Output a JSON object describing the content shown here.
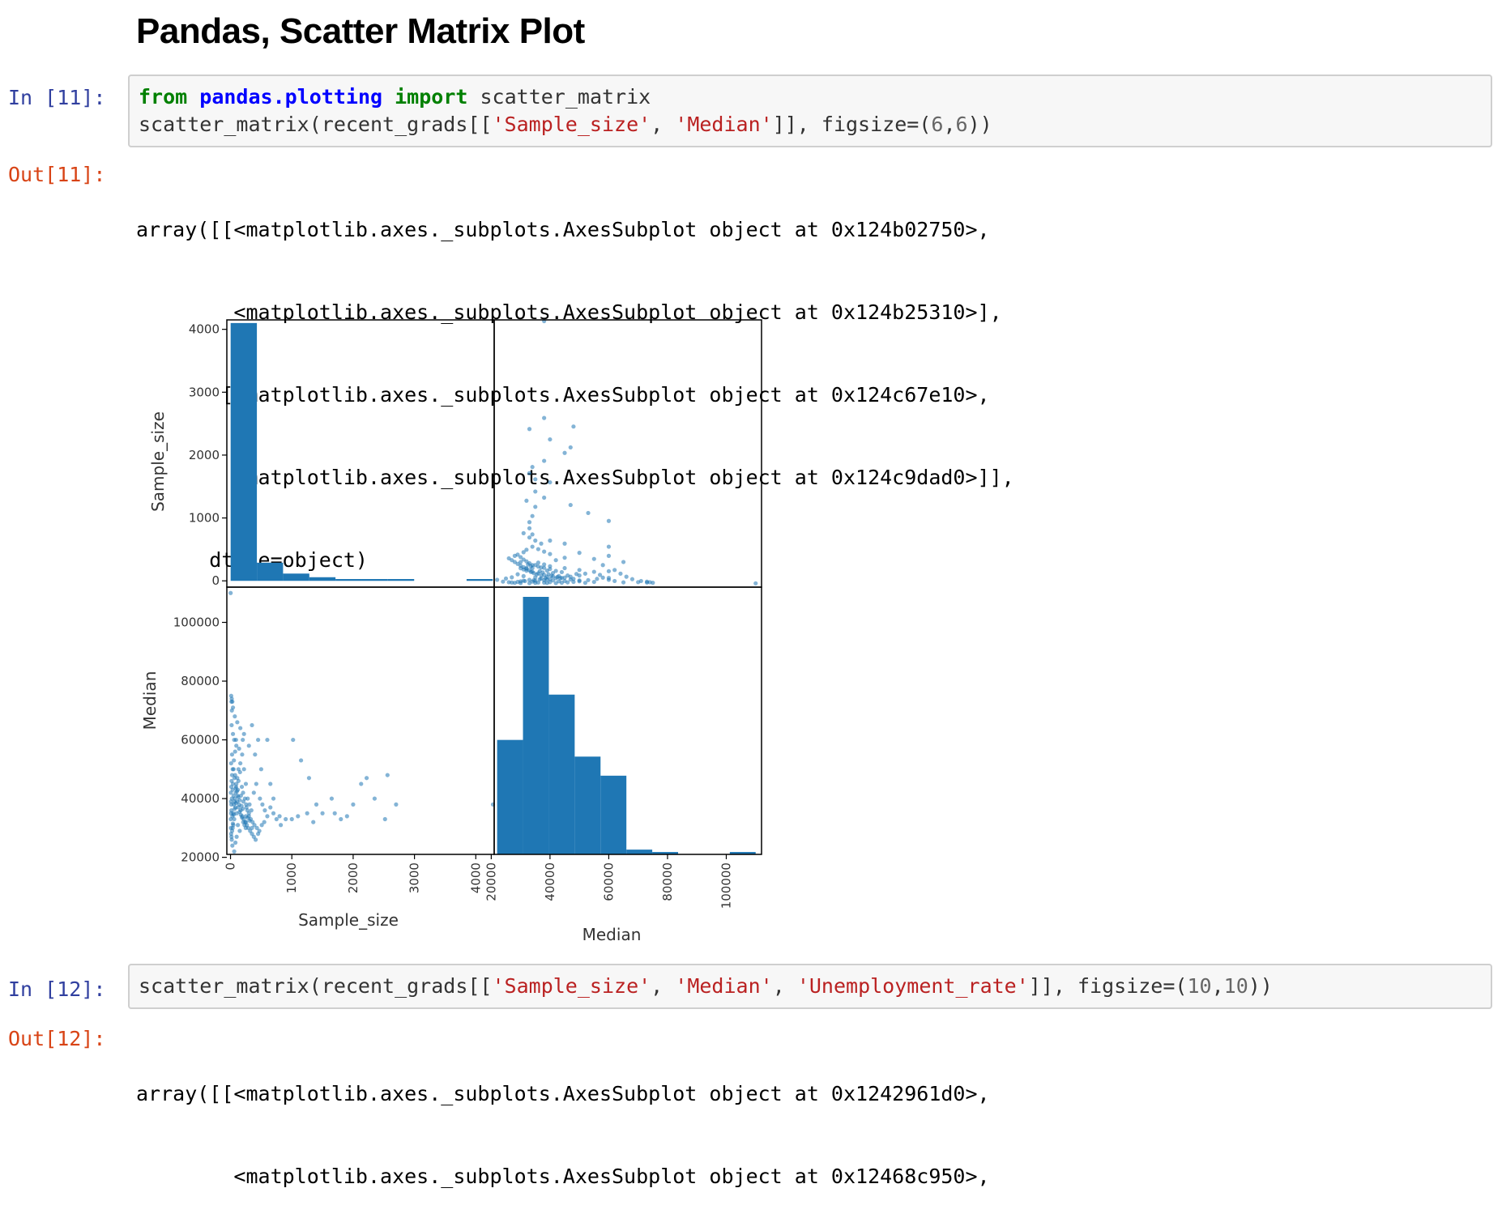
{
  "heading": "Pandas, Scatter Matrix Plot",
  "cells": [
    {
      "in_prompt": "In [11]:",
      "code_lines": [
        [
          {
            "t": "from",
            "c": "kw"
          },
          {
            "t": " "
          },
          {
            "t": "pandas.plotting",
            "c": "mod"
          },
          {
            "t": " "
          },
          {
            "t": "import",
            "c": "kw"
          },
          {
            "t": " scatter_matrix"
          }
        ],
        [
          {
            "t": "scatter_matrix(recent_grads[["
          },
          {
            "t": "'Sample_size'",
            "c": "str"
          },
          {
            "t": ", "
          },
          {
            "t": "'Median'",
            "c": "str"
          },
          {
            "t": "]], figsize=("
          },
          {
            "t": "6",
            "c": "num"
          },
          {
            "t": ","
          },
          {
            "t": "6",
            "c": "num"
          },
          {
            "t": "))"
          }
        ]
      ],
      "out_prompt": "Out[11]:",
      "output_lines": [
        "array([[<matplotlib.axes._subplots.AxesSubplot object at 0x124b02750>,",
        "        <matplotlib.axes._subplots.AxesSubplot object at 0x124b25310>],",
        "       [<matplotlib.axes._subplots.AxesSubplot object at 0x124c67e10>,",
        "        <matplotlib.axes._subplots.AxesSubplot object at 0x124c9dad0>]],",
        "      dtype=object)"
      ]
    },
    {
      "in_prompt": "In [12]:",
      "code_lines": [
        [
          {
            "t": "scatter_matrix(recent_grads[["
          },
          {
            "t": "'Sample_size'",
            "c": "str"
          },
          {
            "t": ", "
          },
          {
            "t": "'Median'",
            "c": "str"
          },
          {
            "t": ", "
          },
          {
            "t": "'Unemployment_rate'",
            "c": "str"
          },
          {
            "t": "]], figsize=("
          },
          {
            "t": "10",
            "c": "num"
          },
          {
            "t": ","
          },
          {
            "t": "10",
            "c": "num"
          },
          {
            "t": "))"
          }
        ]
      ],
      "out_prompt": "Out[12]:",
      "output_lines": [
        "array([[<matplotlib.axes._subplots.AxesSubplot object at 0x1242961d0>,",
        "        <matplotlib.axes._subplots.AxesSubplot object at 0x12468c950>,"
      ]
    }
  ],
  "chart_data": {
    "type": "scatter",
    "variables": [
      "Sample_size",
      "Median"
    ],
    "colors": {
      "mark": "#1f77b4",
      "axis": "#000000"
    },
    "ranges": {
      "Sample_size": [
        -60,
        4300
      ],
      "Median": [
        21000,
        112000
      ]
    },
    "upper_left_ylim": [
      -100,
      4150
    ],
    "upper_left_yticks": [
      0,
      1000,
      2000,
      3000,
      4000
    ],
    "histograms": {
      "Sample_size": {
        "bin_edges": [
          2,
          430,
          857,
          1285,
          1712,
          2140,
          2567,
          2995,
          3422,
          3850,
          4277
        ],
        "counts": [
          142,
          10,
          4,
          2,
          1,
          1,
          1,
          0,
          0,
          1
        ]
      },
      "Median": {
        "bin_edges": [
          22000,
          30800,
          39600,
          48400,
          57200,
          66000,
          74800,
          83600,
          92400,
          101200,
          110000
        ],
        "counts": [
          48,
          108,
          67,
          41,
          33,
          2,
          1,
          0,
          0,
          1
        ]
      }
    },
    "axis_labels": {
      "Sample_size": "Sample_size",
      "Median": "Median"
    },
    "ticks": {
      "Sample_size": [
        0,
        1000,
        2000,
        3000,
        4000
      ],
      "Median": [
        20000,
        40000,
        60000,
        80000,
        100000
      ]
    },
    "points": [
      [
        2,
        110000
      ],
      [
        11,
        75000
      ],
      [
        15,
        73000
      ],
      [
        22,
        70000
      ],
      [
        30,
        73000
      ],
      [
        18,
        65000
      ],
      [
        40,
        62000
      ],
      [
        60,
        60000
      ],
      [
        90,
        60000
      ],
      [
        140,
        57000
      ],
      [
        200,
        60000
      ],
      [
        350,
        65000
      ],
      [
        450,
        60000
      ],
      [
        600,
        60000
      ],
      [
        1020,
        60000
      ],
      [
        1150,
        53000
      ],
      [
        1280,
        47000
      ],
      [
        2130,
        45000
      ],
      [
        2220,
        47000
      ],
      [
        2560,
        48000
      ],
      [
        2350,
        40000
      ],
      [
        2700,
        38000
      ],
      [
        4280,
        38000
      ],
      [
        2520,
        33000
      ],
      [
        1500,
        35000
      ],
      [
        1400,
        38000
      ],
      [
        1700,
        35000
      ],
      [
        1900,
        34000
      ],
      [
        700,
        35000
      ],
      [
        800,
        34000
      ],
      [
        900,
        33000
      ],
      [
        1000,
        33000
      ],
      [
        1100,
        34000
      ],
      [
        550,
        32000
      ],
      [
        450,
        28000
      ],
      [
        350,
        30000
      ],
      [
        250,
        32000
      ],
      [
        150,
        29000
      ],
      [
        100,
        27000
      ],
      [
        80,
        25000
      ],
      [
        60,
        22000
      ],
      [
        30,
        24000
      ],
      [
        20,
        26000
      ],
      [
        35,
        30000
      ],
      [
        45,
        35000
      ],
      [
        55,
        38000
      ],
      [
        70,
        40000
      ],
      [
        85,
        42000
      ],
      [
        95,
        45000
      ],
      [
        110,
        47000
      ],
      [
        130,
        50000
      ],
      [
        160,
        52000
      ],
      [
        190,
        55000
      ],
      [
        220,
        50000
      ],
      [
        250,
        45000
      ],
      [
        280,
        40000
      ],
      [
        310,
        38000
      ],
      [
        340,
        36000
      ],
      [
        380,
        42000
      ],
      [
        420,
        45000
      ],
      [
        480,
        40000
      ],
      [
        520,
        38000
      ],
      [
        560,
        36000
      ],
      [
        600,
        34000
      ],
      [
        650,
        37000
      ],
      [
        700,
        40000
      ],
      [
        750,
        33000
      ],
      [
        820,
        31000
      ],
      [
        40,
        45000
      ],
      [
        75,
        48000
      ],
      [
        120,
        43000
      ],
      [
        170,
        41000
      ],
      [
        210,
        39000
      ],
      [
        260,
        37000
      ],
      [
        300,
        35000
      ],
      [
        10,
        52000
      ],
      [
        25,
        55000
      ],
      [
        50,
        50000
      ],
      [
        65,
        47000
      ],
      [
        90,
        44000
      ],
      [
        115,
        41000
      ],
      [
        140,
        38000
      ],
      [
        165,
        36000
      ],
      [
        190,
        34000
      ],
      [
        215,
        33000
      ],
      [
        240,
        32000
      ],
      [
        265,
        31000
      ],
      [
        290,
        30000
      ],
      [
        320,
        29000
      ],
      [
        350,
        28000
      ],
      [
        380,
        27000
      ],
      [
        410,
        26000
      ],
      [
        120,
        31000
      ],
      [
        100,
        35000
      ],
      [
        80,
        37000
      ],
      [
        60,
        33000
      ],
      [
        45,
        31000
      ],
      [
        30,
        34000
      ],
      [
        15,
        36000
      ],
      [
        8,
        39000
      ],
      [
        5,
        42000
      ],
      [
        12,
        44000
      ],
      [
        18,
        46000
      ],
      [
        25,
        48000
      ],
      [
        35,
        50000
      ],
      [
        55,
        53000
      ],
      [
        75,
        56000
      ],
      [
        95,
        58000
      ],
      [
        130,
        46000
      ],
      [
        155,
        49000
      ],
      [
        185,
        44000
      ],
      [
        205,
        42000
      ],
      [
        235,
        40000
      ],
      [
        255,
        38000
      ],
      [
        275,
        36000
      ],
      [
        300,
        34000
      ],
      [
        330,
        33000
      ],
      [
        360,
        32000
      ],
      [
        390,
        31000
      ],
      [
        430,
        30000
      ],
      [
        470,
        29000
      ],
      [
        510,
        31000
      ],
      [
        1650,
        40000
      ],
      [
        1800,
        33000
      ],
      [
        2000,
        38000
      ],
      [
        1250,
        35000
      ],
      [
        1350,
        32000
      ],
      [
        650,
        45000
      ],
      [
        500,
        50000
      ],
      [
        400,
        55000
      ],
      [
        300,
        58000
      ],
      [
        220,
        62000
      ],
      [
        160,
        64000
      ],
      [
        110,
        66000
      ],
      [
        70,
        68000
      ],
      [
        40,
        71000
      ],
      [
        20,
        74000
      ],
      [
        250,
        34000
      ],
      [
        280,
        33500
      ],
      [
        310,
        32500
      ],
      [
        200,
        36500
      ],
      [
        180,
        37500
      ],
      [
        150,
        39500
      ],
      [
        125,
        40500
      ],
      [
        105,
        42500
      ],
      [
        85,
        43500
      ],
      [
        65,
        39000
      ],
      [
        50,
        41000
      ],
      [
        35,
        43000
      ],
      [
        22,
        40000
      ],
      [
        14,
        38000
      ],
      [
        9,
        35000
      ],
      [
        4,
        33000
      ],
      [
        6,
        30000
      ],
      [
        10,
        28000
      ],
      [
        16,
        27000
      ],
      [
        26,
        29000
      ],
      [
        38,
        31500
      ],
      [
        52,
        34500
      ],
      [
        68,
        36500
      ],
      [
        88,
        38500
      ],
      [
        108,
        39000
      ],
      [
        128,
        37000
      ],
      [
        148,
        35500
      ],
      [
        168,
        34500
      ],
      [
        188,
        33500
      ],
      [
        208,
        32000
      ],
      [
        228,
        31000
      ],
      [
        248,
        30000
      ]
    ]
  }
}
